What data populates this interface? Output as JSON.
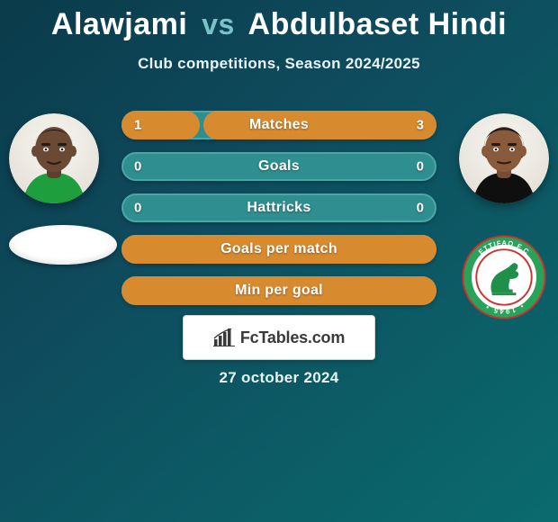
{
  "title": {
    "player1": "Alawjami",
    "vs": "vs",
    "player2": "Abdulbaset Hindi"
  },
  "subtitle": "Club competitions, Season 2024/2025",
  "avatars": {
    "left": {
      "skin": "#6b4a35",
      "shirt": "#1e9e3d",
      "bg_top": "#f4f1ec",
      "bg_bot": "#e6e2da"
    },
    "right": {
      "skin": "#8a5a3c",
      "shirt": "#0f0f0f",
      "bg_top": "#f4f1ec",
      "bg_bot": "#e6e2da",
      "hair": "#1b1b1b"
    }
  },
  "clubs": {
    "left": {
      "type": "blank-oval"
    },
    "right": {
      "name": "Ettifaq FC",
      "name_ar": "ETTIFAQ F.C",
      "outer_ring": "#29a35a",
      "outer_ring2": "#d22f2f",
      "inner_bg": "#ffffff",
      "horse": "#1f8f4a"
    }
  },
  "stats": {
    "rows": [
      {
        "label": "Matches",
        "left_val": "1",
        "right_val": "3",
        "left_pct": 25,
        "right_pct": 75
      },
      {
        "label": "Goals",
        "left_val": "0",
        "right_val": "0",
        "left_pct": 0,
        "right_pct": 0
      },
      {
        "label": "Hattricks",
        "left_val": "0",
        "right_val": "0",
        "left_pct": 0,
        "right_pct": 0
      },
      {
        "label": "Goals per match",
        "left_val": "",
        "right_val": "",
        "full": true
      },
      {
        "label": "Min per goal",
        "left_val": "",
        "right_val": "",
        "full": true
      }
    ],
    "bar_color": "#d88a2f",
    "track_color": "#2f8e8f",
    "track_border": "#4aa7a8",
    "label_color": "#ffffff",
    "label_fontsize": 16
  },
  "watermark": {
    "brand": "FcTables.com"
  },
  "date": "27 october 2024",
  "colors": {
    "bg_from": "#0a3b4a",
    "bg_mid": "#0e4a5c",
    "bg_to": "#0a6b6e",
    "accent": "#7cc3c9"
  }
}
